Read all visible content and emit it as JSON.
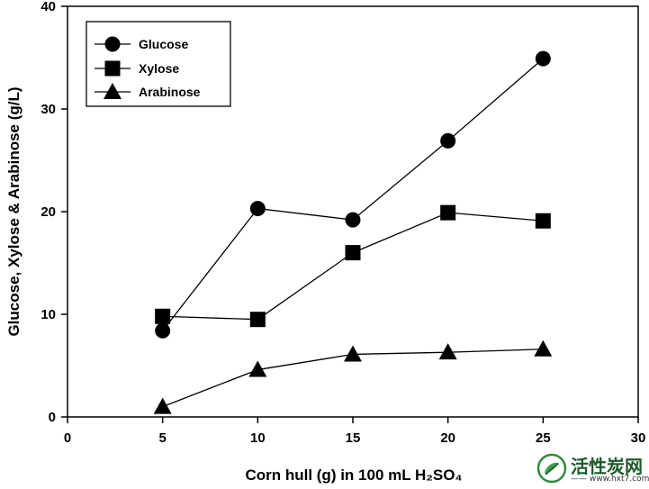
{
  "chart_data": {
    "type": "line",
    "xlabel": "Corn hull (g) in 100 mL H₂SO₄",
    "ylabel": "Glucose, Xylose & Arabinose (g/L)",
    "xlim": [
      0,
      30
    ],
    "ylim": [
      0,
      40
    ],
    "x_ticks": [
      "0",
      "5",
      "10",
      "15",
      "20",
      "25",
      "30"
    ],
    "y_ticks": [
      "0",
      "10",
      "20",
      "30",
      "40"
    ],
    "grid": false,
    "legend_position": "top-left",
    "x": [
      5,
      10,
      15,
      20,
      25
    ],
    "series": [
      {
        "name": "Glucose",
        "marker": "circle",
        "values": [
          8.4,
          20.3,
          19.2,
          26.9,
          34.9
        ]
      },
      {
        "name": "Xylose",
        "marker": "square",
        "values": [
          9.8,
          9.5,
          16.0,
          19.9,
          19.1
        ]
      },
      {
        "name": "Arabinose",
        "marker": "triangle",
        "values": [
          1.0,
          4.6,
          6.1,
          6.3,
          6.6
        ]
      }
    ]
  },
  "watermark": {
    "brand": "活性炭网",
    "url": "—— www.hxt7.com ——"
  }
}
